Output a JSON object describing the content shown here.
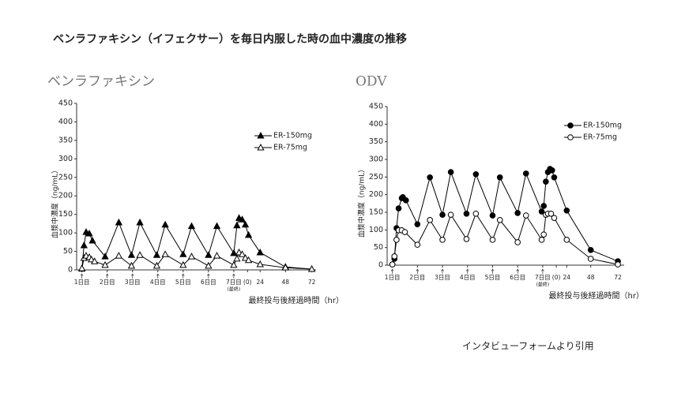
{
  "title": "ベンラファキシン（イフェクサー）を毎日内服した時の血中濃度の推移",
  "source": "インタビューフォームより引用",
  "chart_data": [
    {
      "type": "line",
      "title": "ベンラファキシン",
      "ylabel": "血漿中濃度（ng/mL）",
      "xlabel": "最終投与後経過時間（hr）",
      "xlim": [
        -5,
        222
      ],
      "ylim": [
        0,
        450
      ],
      "xticks": [
        {
          "value": 0,
          "label": "1日目"
        },
        {
          "value": 24,
          "label": "2日目"
        },
        {
          "value": 48,
          "label": "3日目"
        },
        {
          "value": 72,
          "label": "4日目"
        },
        {
          "value": 96,
          "label": "5日目"
        },
        {
          "value": 120,
          "label": "6日目"
        },
        {
          "value": 144,
          "label": "7日目"
        },
        {
          "value": 157,
          "label": "(0)"
        },
        {
          "value": 169,
          "label": "24"
        },
        {
          "value": 193,
          "label": "48"
        },
        {
          "value": 218,
          "label": "72"
        }
      ],
      "yticks": [
        0,
        50,
        100,
        150,
        200,
        250,
        300,
        350,
        400,
        450
      ],
      "annotations": [
        {
          "text": "(最終)",
          "x": 144
        }
      ],
      "legend": "upper right",
      "series": [
        {
          "name": "ER-150mg",
          "color": "#000000",
          "marker": "triangle",
          "filled": true,
          "x": [
            0,
            2,
            4,
            7,
            10,
            22,
            35,
            47,
            55,
            71,
            79,
            96,
            104,
            120,
            128,
            144,
            147,
            149,
            152,
            155,
            158,
            169,
            193,
            218
          ],
          "values": [
            3,
            66,
            102,
            98,
            79,
            36,
            128,
            40,
            128,
            40,
            122,
            42,
            118,
            40,
            118,
            45,
            120,
            140,
            136,
            122,
            94,
            47,
            8,
            2
          ]
        },
        {
          "name": "ER-75mg",
          "color": "#000000",
          "marker": "triangle",
          "filled": false,
          "x": [
            0,
            2,
            4,
            7,
            9,
            12,
            22,
            35,
            47,
            55,
            71,
            79,
            96,
            104,
            120,
            128,
            144,
            147,
            149,
            152,
            155,
            158,
            169,
            193,
            218
          ],
          "values": [
            4,
            32,
            38,
            34,
            28,
            23,
            13,
            38,
            11,
            40,
            11,
            42,
            13,
            36,
            11,
            38,
            13,
            30,
            47,
            42,
            32,
            26,
            15,
            6,
            2
          ]
        }
      ]
    },
    {
      "type": "line",
      "title": "ODV",
      "ylabel": "血漿中濃度（ng/mL）",
      "xlabel": "最終投与後経過時間（hr）",
      "xlim": [
        -5,
        222
      ],
      "ylim": [
        0,
        450
      ],
      "xticks": [
        {
          "value": 0,
          "label": "1日目"
        },
        {
          "value": 24,
          "label": "2日目"
        },
        {
          "value": 48,
          "label": "3日目"
        },
        {
          "value": 72,
          "label": "4日目"
        },
        {
          "value": 96,
          "label": "5日目"
        },
        {
          "value": 120,
          "label": "6日目"
        },
        {
          "value": 144,
          "label": "7日目"
        },
        {
          "value": 157,
          "label": "(0)"
        },
        {
          "value": 167,
          "label": "24"
        },
        {
          "value": 190,
          "label": "48"
        },
        {
          "value": 216,
          "label": "72"
        }
      ],
      "yticks": [
        0,
        50,
        100,
        150,
        200,
        250,
        300,
        350,
        400,
        450
      ],
      "annotations": [
        {
          "text": "(最終)",
          "x": 144
        }
      ],
      "legend": "upper right",
      "series": [
        {
          "name": "ER-150mg",
          "color": "#000000",
          "marker": "circle",
          "filled": true,
          "x": [
            0,
            2,
            4,
            6,
            9,
            10,
            13,
            24,
            36,
            48,
            56,
            71,
            80,
            96,
            103,
            120,
            128,
            143,
            145,
            147,
            149,
            151,
            153,
            155,
            167,
            190,
            216
          ],
          "values": [
            2,
            18,
            105,
            161,
            190,
            193,
            184,
            116,
            249,
            143,
            264,
            146,
            258,
            141,
            249,
            148,
            260,
            152,
            168,
            237,
            264,
            273,
            269,
            249,
            155,
            43,
            11
          ]
        },
        {
          "name": "ER-75mg",
          "color": "#000000",
          "marker": "circle",
          "filled": false,
          "x": [
            0,
            2,
            4,
            6,
            9,
            12,
            24,
            36,
            48,
            56,
            71,
            80,
            96,
            103,
            120,
            128,
            143,
            145,
            147,
            149,
            152,
            155,
            167,
            190,
            216
          ],
          "values": [
            2,
            25,
            72,
            99,
            99,
            94,
            58,
            128,
            72,
            143,
            74,
            146,
            72,
            128,
            65,
            141,
            72,
            87,
            143,
            146,
            146,
            134,
            72,
            18,
            2
          ]
        }
      ]
    }
  ]
}
